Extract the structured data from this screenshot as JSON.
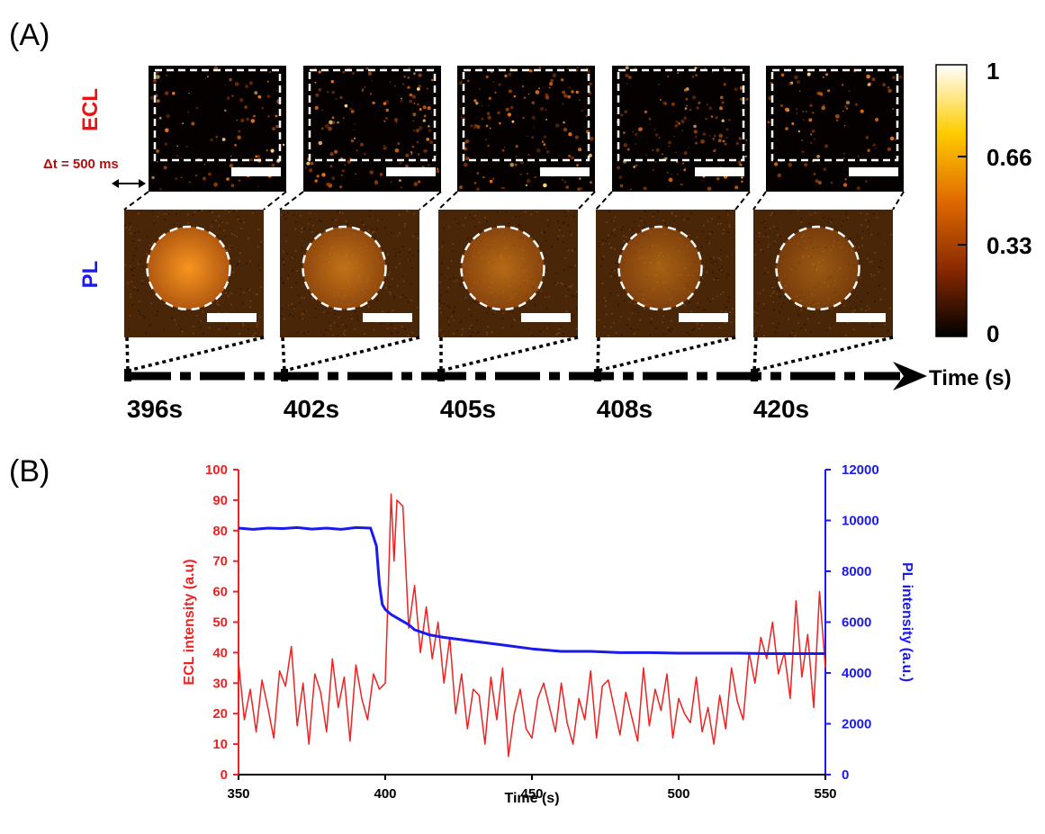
{
  "panel_a": {
    "label": "(A)",
    "row_ecl_label": "ECL",
    "row_pl_label": "PL",
    "delta_t": "Δt = 500 ms",
    "time_axis_label": "Time (s)",
    "frames": [
      {
        "time": "396s",
        "ecl_level": 0.25,
        "pl_level": 0.95
      },
      {
        "time": "402s",
        "ecl_level": 0.6,
        "pl_level": 0.55
      },
      {
        "time": "405s",
        "ecl_level": 0.6,
        "pl_level": 0.45
      },
      {
        "time": "408s",
        "ecl_level": 0.55,
        "pl_level": 0.35
      },
      {
        "time": "420s",
        "ecl_level": 0.3,
        "pl_level": 0.25
      }
    ],
    "colorbar": {
      "ticks": [
        "1",
        "0.66",
        "0.33",
        "0"
      ],
      "colors": [
        "#000000",
        "#8a2a00",
        "#e06a00",
        "#ffcc00",
        "#ffffff"
      ]
    }
  },
  "panel_b": {
    "label": "(B)"
  },
  "chart_data": {
    "type": "line",
    "xlabel": "Time  (s)",
    "ylabel_left": "ECL intensity (a.u)",
    "ylabel_right": "PL intensity (a.u.)",
    "xlim": [
      350,
      550
    ],
    "ylim_left": [
      0,
      100
    ],
    "ylim_right": [
      0,
      12000
    ],
    "x_ticks": [
      "350",
      "400",
      "450",
      "500",
      "550"
    ],
    "y_ticks_left": [
      "0",
      "10",
      "20",
      "30",
      "40",
      "50",
      "60",
      "70",
      "80",
      "90",
      "100"
    ],
    "y_ticks_right": [
      "0",
      "2000",
      "4000",
      "6000",
      "8000",
      "10000",
      "12000"
    ],
    "series": [
      {
        "axis": "left",
        "color": "#ee2222",
        "x": [
          350,
          352,
          354,
          356,
          358,
          360,
          362,
          364,
          366,
          368,
          370,
          372,
          374,
          376,
          378,
          380,
          382,
          384,
          386,
          388,
          390,
          392,
          394,
          396,
          398,
          400,
          401,
          402,
          403,
          404,
          406,
          408,
          410,
          412,
          414,
          416,
          418,
          420,
          422,
          424,
          426,
          428,
          430,
          432,
          434,
          436,
          438,
          440,
          442,
          444,
          446,
          448,
          450,
          452,
          454,
          456,
          458,
          460,
          462,
          464,
          466,
          468,
          470,
          472,
          474,
          476,
          478,
          480,
          482,
          484,
          486,
          488,
          490,
          492,
          494,
          496,
          498,
          500,
          502,
          504,
          506,
          508,
          510,
          512,
          514,
          516,
          518,
          520,
          522,
          524,
          526,
          528,
          530,
          532,
          534,
          536,
          538,
          540,
          542,
          544,
          546,
          548,
          550
        ],
        "values": [
          37,
          18,
          28,
          14,
          31,
          22,
          12,
          34,
          29,
          42,
          16,
          30,
          10,
          33,
          27,
          14,
          38,
          22,
          32,
          11,
          36,
          25,
          18,
          33,
          28,
          30,
          60,
          92,
          70,
          90,
          88,
          48,
          62,
          40,
          55,
          38,
          50,
          30,
          45,
          20,
          33,
          15,
          28,
          26,
          10,
          32,
          18,
          35,
          6,
          20,
          28,
          15,
          12,
          25,
          30,
          22,
          14,
          30,
          17,
          10,
          25,
          18,
          34,
          12,
          29,
          31,
          22,
          13,
          27,
          19,
          11,
          35,
          16,
          28,
          21,
          33,
          12,
          25,
          20,
          17,
          32,
          14,
          22,
          10,
          26,
          15,
          35,
          24,
          18,
          40,
          30,
          45,
          38,
          50,
          33,
          40,
          25,
          57,
          32,
          46,
          22,
          60,
          35
        ],
        "name": ""
      },
      {
        "axis": "right",
        "color": "#1a1aee",
        "x": [
          350,
          355,
          360,
          365,
          370,
          375,
          380,
          385,
          390,
          395,
          397,
          398,
          399,
          400,
          402,
          405,
          408,
          410,
          415,
          420,
          430,
          440,
          450,
          460,
          470,
          480,
          490,
          500,
          510,
          520,
          530,
          540,
          550
        ],
        "values": [
          9700,
          9650,
          9700,
          9680,
          9720,
          9660,
          9700,
          9650,
          9720,
          9700,
          9000,
          7500,
          6700,
          6500,
          6300,
          6100,
          5900,
          5700,
          5500,
          5400,
          5250,
          5100,
          4950,
          4850,
          4850,
          4800,
          4800,
          4780,
          4780,
          4780,
          4760,
          4760,
          4760
        ],
        "name": ""
      }
    ]
  }
}
